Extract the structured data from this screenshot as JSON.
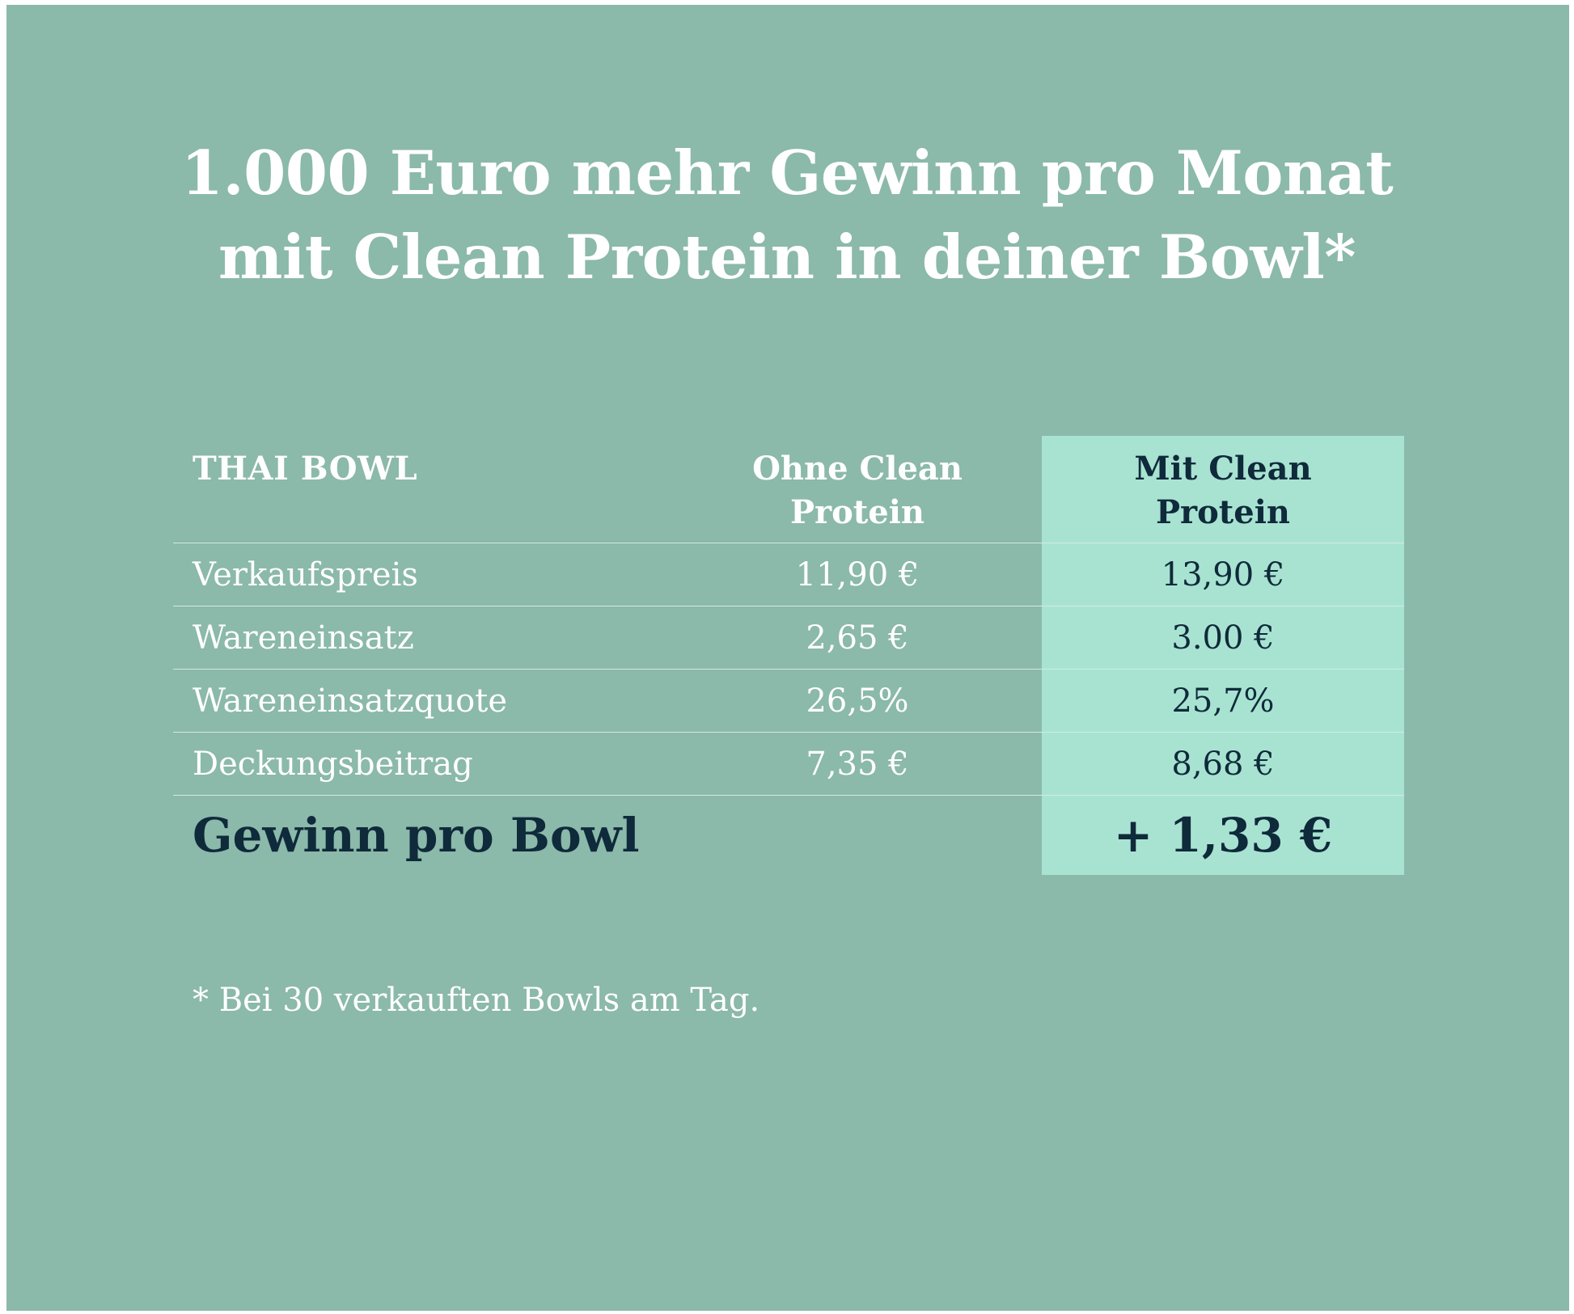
{
  "title": {
    "line1": "1.000 Euro mehr Gewinn pro Monat",
    "line2": "mit Clean Protein in deiner Bowl*"
  },
  "table": {
    "header": {
      "label": "THAI BOWL",
      "col1_line1": "Ohne Clean",
      "col1_line2": "Protein",
      "col2_line1": "Mit Clean",
      "col2_line2": "Protein"
    },
    "rows": [
      {
        "label": "Verkaufspreis",
        "without": "11,90 €",
        "with": "13,90 €"
      },
      {
        "label": "Wareneinsatz",
        "without": "2,65 €",
        "with": "3.00 €"
      },
      {
        "label": "Wareneinsatzquote",
        "without": "26,5%",
        "with": "25,7%"
      },
      {
        "label": "Deckungsbeitrag",
        "without": "7,35 €",
        "with": "8,68 €"
      }
    ],
    "total": {
      "label": "Gewinn pro Bowl",
      "value": "+ 1,33 €"
    }
  },
  "footnote": "* Bei 30 verkauften Bowls am Tag.",
  "colors": {
    "background": "#8bb9aa",
    "highlight": "#a8e3d2",
    "dark_text": "#0f2a3a",
    "light_text": "#ffffff"
  }
}
